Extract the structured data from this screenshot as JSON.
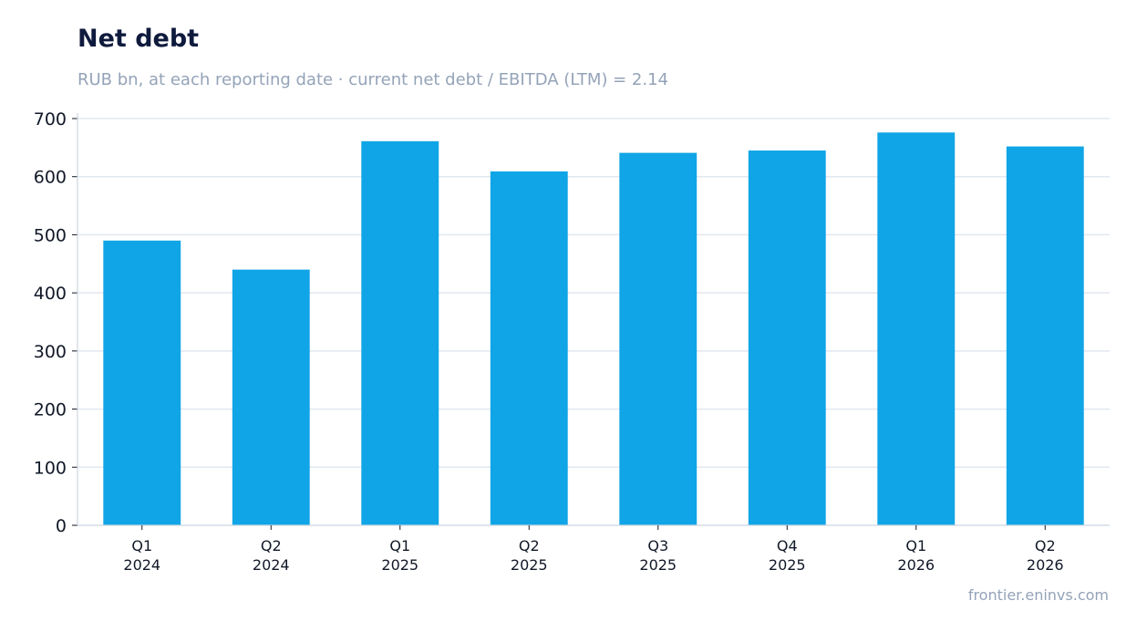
{
  "header": {
    "title": "Net debt",
    "subtitle": "RUB bn, at each reporting date · current net debt / EBITDA (LTM) = 2.14"
  },
  "footer": {
    "source": "frontier.eninvs.com"
  },
  "colors": {
    "bar": "#10a5e6",
    "grid": "#e2e8f0",
    "axis": "#cbd5e1"
  },
  "chart_data": {
    "type": "bar",
    "categories": [
      [
        "Q1",
        "2024"
      ],
      [
        "Q2",
        "2024"
      ],
      [
        "Q1",
        "2025"
      ],
      [
        "Q2",
        "2025"
      ],
      [
        "Q3",
        "2025"
      ],
      [
        "Q4",
        "2025"
      ],
      [
        "Q1",
        "2026"
      ],
      [
        "Q2",
        "2026"
      ]
    ],
    "values": [
      490,
      440,
      661,
      609,
      641,
      645,
      676,
      652
    ],
    "yticks": [
      0,
      100,
      200,
      300,
      400,
      500,
      600,
      700
    ],
    "ylim": [
      0,
      700
    ],
    "grid": true,
    "title": "Net debt",
    "xlabel": "",
    "ylabel": ""
  }
}
